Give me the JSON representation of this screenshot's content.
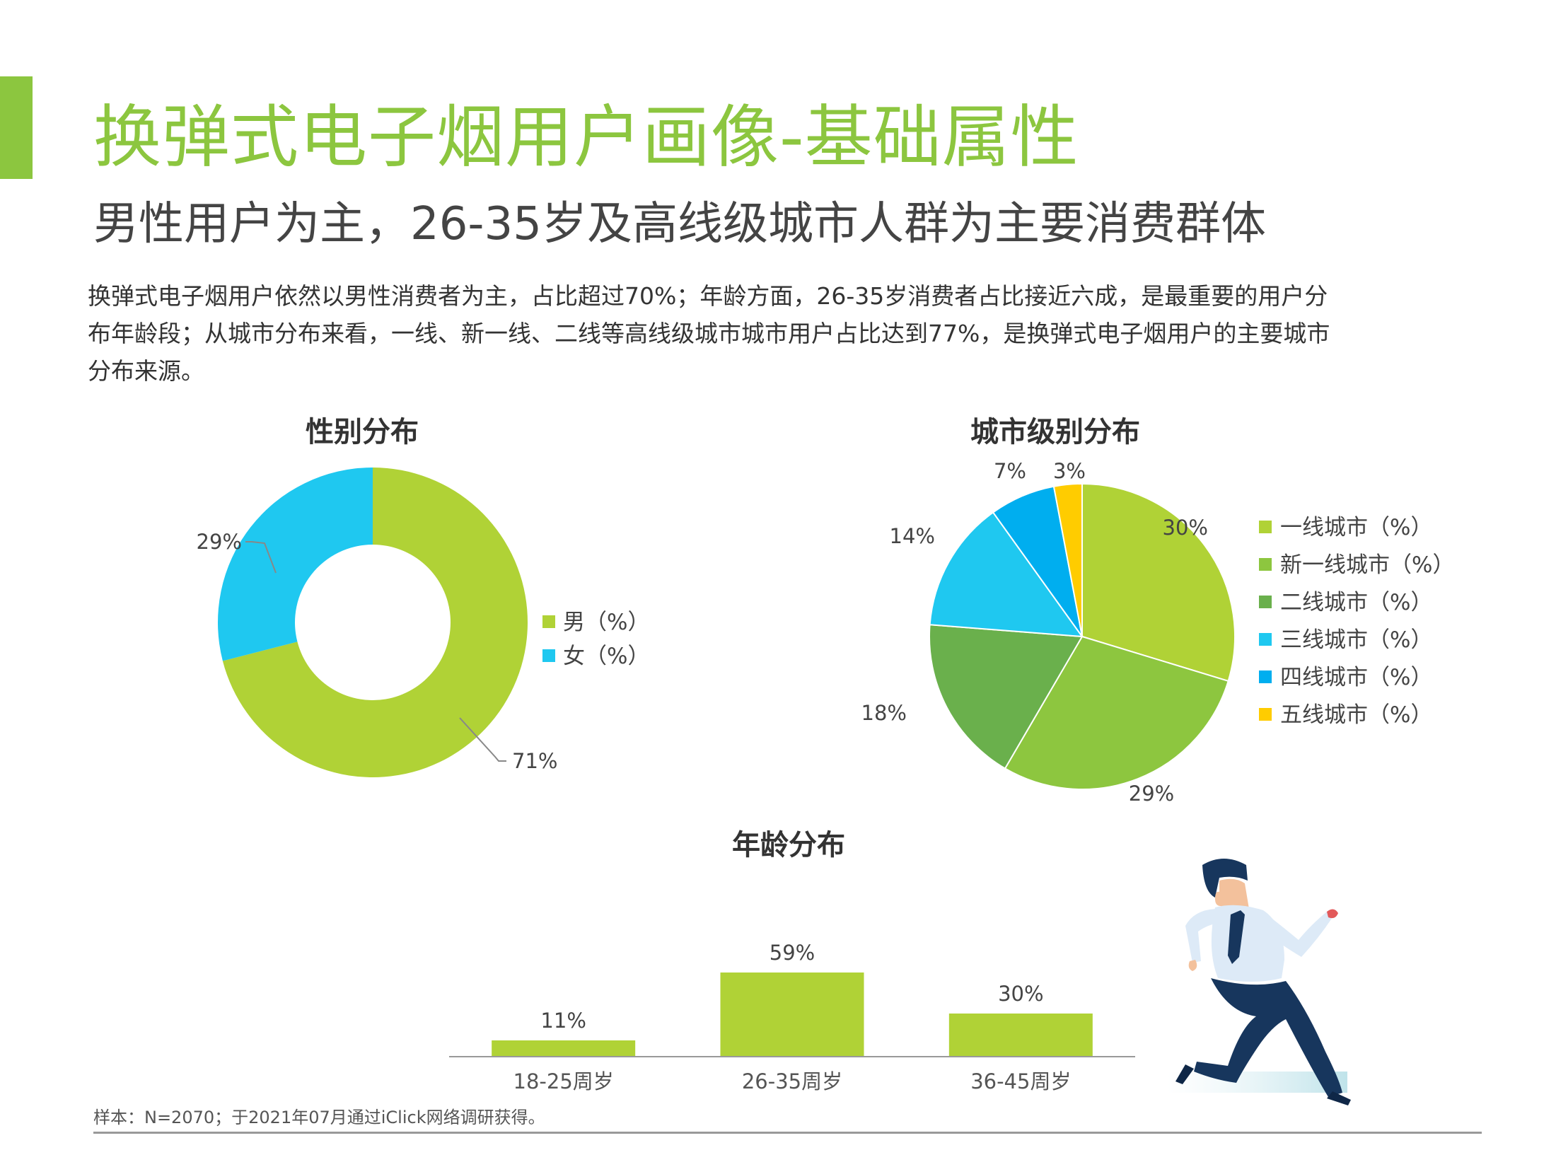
{
  "header": {
    "title": "换弹式电子烟用户画像-基础属性",
    "subtitle": "男性用户为主，26-35岁及高线级城市人群为主要消费群体",
    "paragraph_lines": [
      "换弹式电子烟用户依然以男性消费者为主，占比超过70%；年龄方面，26-35岁消费者占比接近六成，是最重要的用户分",
      "布年龄段；从城市分布来看，一线、新一线、二线等高线级城市城市用户占比达到77%，是换弹式电子烟用户的主要城市",
      "分布来源。"
    ]
  },
  "colors": {
    "accent": "#8cc63f",
    "lime": "#b0d236",
    "green_mid": "#8dc63f",
    "green_dark": "#6ab04c",
    "cyan": "#1fc8f0",
    "blue": "#00aeef",
    "yellow": "#ffcc00"
  },
  "chart_data": [
    {
      "type": "pie",
      "variant": "donut",
      "title": "性别分布",
      "slices": [
        {
          "label": "男（%）",
          "value": 71,
          "value_label": "71%",
          "color": "#b0d236"
        },
        {
          "label": "女（%）",
          "value": 29,
          "value_label": "29%",
          "color": "#1fc8f0"
        }
      ],
      "legend_position": "right"
    },
    {
      "type": "pie",
      "title": "城市级别分布",
      "slices": [
        {
          "label": "一线城市（%）",
          "value": 30,
          "value_label": "30%",
          "color": "#b0d236"
        },
        {
          "label": "新一线城市（%）",
          "value": 29,
          "value_label": "29%",
          "color": "#8dc63f"
        },
        {
          "label": "二线城市（%）",
          "value": 18,
          "value_label": "18%",
          "color": "#6ab04c"
        },
        {
          "label": "三线城市（%）",
          "value": 14,
          "value_label": "14%",
          "color": "#1fc8f0"
        },
        {
          "label": "四线城市（%）",
          "value": 7,
          "value_label": "7%",
          "color": "#00aeef"
        },
        {
          "label": "五线城市（%）",
          "value": 3,
          "value_label": "3%",
          "color": "#ffcc00"
        }
      ],
      "legend_position": "right"
    },
    {
      "type": "bar",
      "title": "年龄分布",
      "categories": [
        "18-25周岁",
        "26-35周岁",
        "36-45周岁"
      ],
      "values": [
        11,
        59,
        30
      ],
      "value_labels": [
        "11%",
        "59%",
        "30%"
      ],
      "color": "#b0d236",
      "ylim": [
        0,
        100
      ]
    }
  ],
  "footer": {
    "note": "样本：N=2070；于2021年07月通过iClick网络调研获得。"
  }
}
